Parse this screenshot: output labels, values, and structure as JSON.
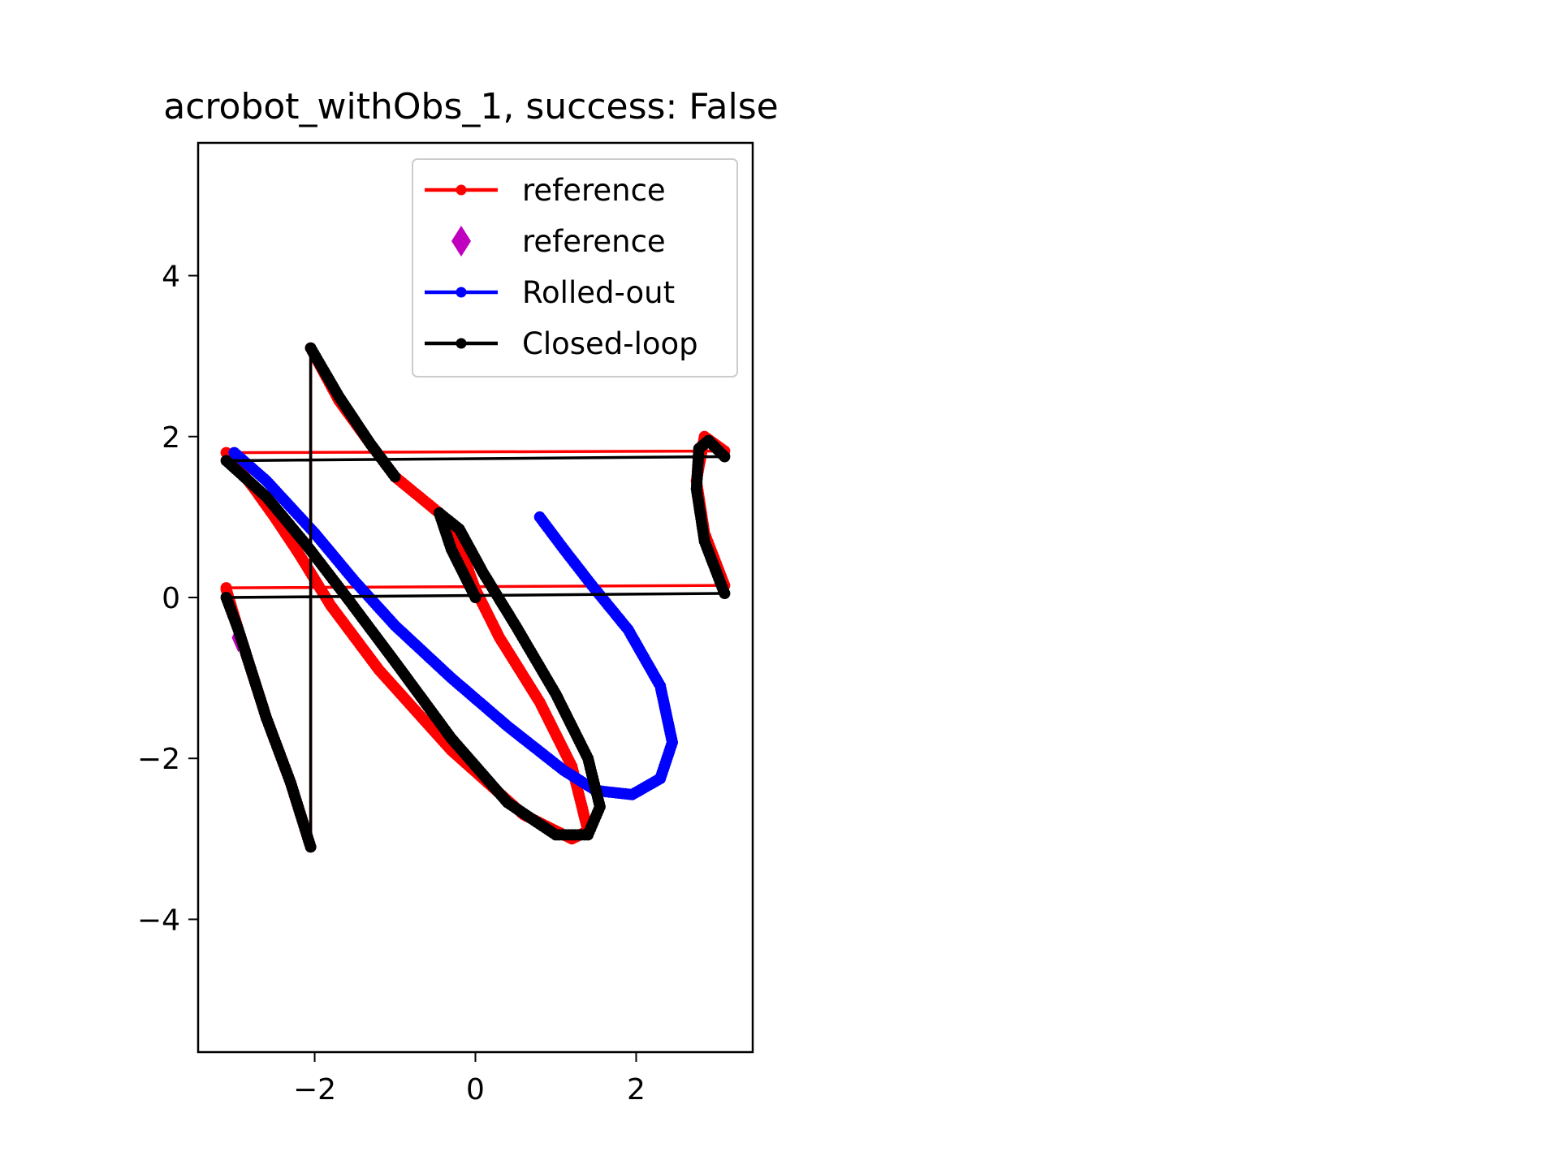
{
  "chart_data": {
    "type": "line",
    "title": "acrobot_withObs_1, success: False",
    "xlabel": "",
    "ylabel": "",
    "xlim": [
      -3.45,
      3.45
    ],
    "ylim": [
      -5.65,
      5.65
    ],
    "xticks": [
      -2,
      0,
      2
    ],
    "yticks": [
      -4,
      -2,
      0,
      2,
      4
    ],
    "xtick_labels": [
      "−2",
      "0",
      "2"
    ],
    "ytick_labels": [
      "−4",
      "−2",
      "0",
      "2",
      "4"
    ],
    "grid": false,
    "legend_position": "top-right",
    "legend": [
      {
        "label": "reference",
        "color": "#ff0000",
        "marker": "dot",
        "line": true
      },
      {
        "label": "reference",
        "color": "#bf00bf",
        "marker": "diamond",
        "line": false
      },
      {
        "label": "Rolled-out",
        "color": "#0000ff",
        "marker": "dot",
        "line": true
      },
      {
        "label": "Closed-loop",
        "color": "#000000",
        "marker": "dot",
        "line": true
      }
    ],
    "series": [
      {
        "name": "reference",
        "color": "#ff0000",
        "points": [
          [
            -3.1,
            0.1
          ],
          [
            -2.95,
            -0.4
          ],
          [
            -2.6,
            -1.5
          ],
          [
            -2.3,
            -2.3
          ],
          [
            -2.05,
            -3.1
          ],
          [
            -2.05,
            3.1
          ],
          [
            -1.7,
            2.45
          ],
          [
            -1.3,
            1.9
          ],
          [
            -1.0,
            1.5
          ],
          [
            -0.45,
            1.05
          ],
          [
            -0.2,
            0.65
          ],
          [
            0.0,
            0.1
          ],
          [
            0.3,
            -0.5
          ],
          [
            0.8,
            -1.3
          ],
          [
            1.2,
            -2.1
          ],
          [
            1.4,
            -2.9
          ],
          [
            1.2,
            -3.0
          ],
          [
            0.6,
            -2.7
          ],
          [
            -0.3,
            -1.9
          ],
          [
            -1.2,
            -0.9
          ],
          [
            -1.8,
            -0.1
          ],
          [
            -2.2,
            0.55
          ],
          [
            -2.5,
            1.0
          ],
          [
            -2.75,
            1.35
          ],
          [
            -3.1,
            1.8
          ],
          [
            3.1,
            1.82
          ],
          [
            2.85,
            2.0
          ],
          [
            2.75,
            1.45
          ],
          [
            2.85,
            0.8
          ],
          [
            3.1,
            0.15
          ],
          [
            -3.1,
            0.12
          ]
        ]
      },
      {
        "name": "reference",
        "color": "#bf00bf",
        "marker": "diamond",
        "points": [
          [
            -2.95,
            -0.5
          ]
        ]
      },
      {
        "name": "Rolled-out",
        "color": "#0000ff",
        "points": [
          [
            -3.0,
            1.8
          ],
          [
            -2.6,
            1.45
          ],
          [
            -2.0,
            0.8
          ],
          [
            -1.5,
            0.2
          ],
          [
            -1.0,
            -0.35
          ],
          [
            -0.3,
            -1.0
          ],
          [
            0.4,
            -1.6
          ],
          [
            1.1,
            -2.15
          ],
          [
            1.5,
            -2.4
          ],
          [
            1.95,
            -2.45
          ],
          [
            2.3,
            -2.25
          ],
          [
            2.45,
            -1.8
          ],
          [
            2.3,
            -1.1
          ],
          [
            1.9,
            -0.4
          ],
          [
            1.45,
            0.15
          ],
          [
            1.1,
            0.6
          ],
          [
            0.8,
            1.0
          ]
        ]
      },
      {
        "name": "Closed-loop",
        "color": "#000000",
        "points": [
          [
            -1.0,
            1.5
          ],
          [
            -1.3,
            1.9
          ],
          [
            -1.7,
            2.5
          ],
          [
            -2.05,
            3.1
          ],
          [
            -2.05,
            -3.1
          ],
          [
            -2.3,
            -2.3
          ],
          [
            -2.6,
            -1.5
          ],
          [
            -2.95,
            -0.4
          ],
          [
            -3.1,
            0.0
          ],
          [
            3.1,
            0.05
          ],
          [
            2.85,
            0.7
          ],
          [
            2.75,
            1.35
          ],
          [
            2.78,
            1.85
          ],
          [
            2.9,
            1.95
          ],
          [
            3.1,
            1.75
          ],
          [
            -3.1,
            1.7
          ],
          [
            -2.6,
            1.25
          ],
          [
            -2.1,
            0.65
          ],
          [
            -1.6,
            0.0
          ],
          [
            -1.0,
            -0.8
          ],
          [
            -0.3,
            -1.75
          ],
          [
            0.4,
            -2.55
          ],
          [
            1.0,
            -2.95
          ],
          [
            1.4,
            -2.95
          ],
          [
            1.55,
            -2.6
          ],
          [
            1.4,
            -2.0
          ],
          [
            1.0,
            -1.2
          ],
          [
            0.5,
            -0.35
          ],
          [
            0.1,
            0.3
          ],
          [
            -0.2,
            0.85
          ],
          [
            -0.45,
            1.05
          ],
          [
            -0.3,
            0.6
          ],
          [
            0.0,
            0.0
          ]
        ]
      }
    ]
  }
}
